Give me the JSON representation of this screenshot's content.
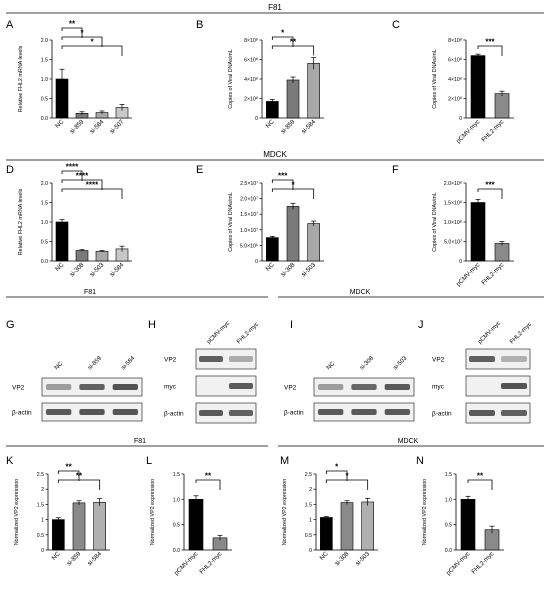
{
  "sections": {
    "top": "F81",
    "middle": "MDCK",
    "blot_left": "F81",
    "blot_right": "MDCK",
    "bottom_left": "F81",
    "bottom_right": "MDCK"
  },
  "panel_letters": {
    "A": "A",
    "B": "B",
    "C": "C",
    "D": "D",
    "E": "E",
    "F": "F",
    "G": "G",
    "H": "H",
    "I": "I",
    "J": "J",
    "K": "K",
    "L": "L",
    "M": "M",
    "N": "N"
  },
  "chart_data": [
    {
      "id": "A",
      "type": "bar",
      "categories": [
        "NC",
        "si-859",
        "si-584",
        "si-507"
      ],
      "values": [
        1.0,
        0.12,
        0.14,
        0.27
      ],
      "errors": [
        0.25,
        0.04,
        0.04,
        0.08
      ],
      "fills": [
        "#000000",
        "#7a7a7a",
        "#a8a8a8",
        "#c8c8c8"
      ],
      "ylabel": "Relative FHL2 mRNA levels",
      "ylim": [
        0,
        2.0
      ],
      "ticks": [
        {
          "v": 0,
          "t": "0.0"
        },
        {
          "v": 0.5,
          "t": "0.5"
        },
        {
          "v": 1.0,
          "t": "1.0"
        },
        {
          "v": 1.5,
          "t": "1.5"
        },
        {
          "v": 2.0,
          "t": "2.0"
        }
      ],
      "significance": [
        {
          "to": 1,
          "label": "**"
        },
        {
          "to": 2,
          "label": "*"
        },
        {
          "to": 3,
          "label": "*"
        }
      ]
    },
    {
      "id": "B",
      "type": "bar",
      "categories": [
        "NC",
        "si-859",
        "si-584"
      ],
      "values": [
        170000000,
        390000000,
        560000000
      ],
      "errors": [
        20000000,
        30000000,
        60000000
      ],
      "fills": [
        "#000000",
        "#7a7a7a",
        "#a8a8a8"
      ],
      "ylabel": "Copies of Viral DNAs/mL",
      "ylim": [
        0,
        800000000
      ],
      "ticks": [
        {
          "v": 0,
          "t": "0"
        },
        {
          "v": 200000000,
          "t": "2×10⁸"
        },
        {
          "v": 400000000,
          "t": "4×10⁸"
        },
        {
          "v": 600000000,
          "t": "6×10⁸"
        },
        {
          "v": 800000000,
          "t": "8×10⁸"
        }
      ],
      "significance": [
        {
          "to": 1,
          "label": "*"
        },
        {
          "to": 2,
          "label": "**"
        }
      ]
    },
    {
      "id": "C",
      "type": "bar",
      "categories": [
        "pCMV-myc",
        "FHL2-myc"
      ],
      "values": [
        640000000,
        250000000
      ],
      "errors": [
        15000000,
        25000000
      ],
      "fills": [
        "#000000",
        "#8a8a8a"
      ],
      "ylabel": "Copies of Viral DNAs/mL",
      "ylim": [
        0,
        800000000
      ],
      "ticks": [
        {
          "v": 0,
          "t": "0"
        },
        {
          "v": 200000000,
          "t": "2×10⁸"
        },
        {
          "v": 400000000,
          "t": "4×10⁸"
        },
        {
          "v": 600000000,
          "t": "6×10⁸"
        },
        {
          "v": 800000000,
          "t": "8×10⁸"
        }
      ],
      "significance": [
        {
          "to": 1,
          "label": "***"
        }
      ]
    },
    {
      "id": "D",
      "type": "bar",
      "categories": [
        "NC",
        "si-308",
        "si-503",
        "si-584"
      ],
      "values": [
        1.0,
        0.27,
        0.25,
        0.31
      ],
      "errors": [
        0.06,
        0.02,
        0.02,
        0.07
      ],
      "fills": [
        "#000000",
        "#7a7a7a",
        "#a8a8a8",
        "#c8c8c8"
      ],
      "ylabel": "Relative FHL2 mRNA levels",
      "ylim": [
        0,
        2.0
      ],
      "ticks": [
        {
          "v": 0,
          "t": "0.0"
        },
        {
          "v": 0.5,
          "t": "0.5"
        },
        {
          "v": 1.0,
          "t": "1.0"
        },
        {
          "v": 1.5,
          "t": "1.5"
        },
        {
          "v": 2.0,
          "t": "2.0"
        }
      ],
      "significance": [
        {
          "to": 1,
          "label": "****"
        },
        {
          "to": 2,
          "label": "****"
        },
        {
          "to": 3,
          "label": "****"
        }
      ]
    },
    {
      "id": "E",
      "type": "bar",
      "categories": [
        "NC",
        "si-308",
        "si-503"
      ],
      "values": [
        7500000,
        17500000,
        12000000
      ],
      "errors": [
        400000,
        1000000,
        800000
      ],
      "fills": [
        "#000000",
        "#7a7a7a",
        "#a8a8a8"
      ],
      "ylabel": "Copies of Viral DNAs/mL",
      "ylim": [
        0,
        25000000
      ],
      "ticks": [
        {
          "v": 0,
          "t": "0"
        },
        {
          "v": 5000000,
          "t": "5.0×10⁶"
        },
        {
          "v": 10000000,
          "t": "1.0×10⁷"
        },
        {
          "v": 15000000,
          "t": "1.5×10⁷"
        },
        {
          "v": 20000000,
          "t": "2.0×10⁷"
        },
        {
          "v": 25000000,
          "t": "2.5×10⁷"
        }
      ],
      "significance": [
        {
          "to": 1,
          "label": "***"
        },
        {
          "to": 2,
          "label": "*"
        }
      ]
    },
    {
      "id": "F",
      "type": "bar",
      "categories": [
        "pCMV-myc",
        "FHL2-myc"
      ],
      "values": [
        150000000,
        45000000
      ],
      "errors": [
        8000000,
        5000000
      ],
      "fills": [
        "#000000",
        "#8a8a8a"
      ],
      "ylabel": "Copies of Viral DNAs/mL",
      "ylim": [
        0,
        200000000
      ],
      "ticks": [
        {
          "v": 0,
          "t": "0"
        },
        {
          "v": 50000000,
          "t": "5.0×10⁷"
        },
        {
          "v": 100000000,
          "t": "1.0×10⁸"
        },
        {
          "v": 150000000,
          "t": "1.5×10⁸"
        },
        {
          "v": 200000000,
          "t": "2.0×10⁸"
        }
      ],
      "significance": [
        {
          "to": 1,
          "label": "***"
        }
      ]
    },
    {
      "id": "K",
      "type": "bar",
      "categories": [
        "NC",
        "si-859",
        "si-584"
      ],
      "values": [
        1.0,
        1.55,
        1.57
      ],
      "errors": [
        0.06,
        0.07,
        0.12
      ],
      "fills": [
        "#000000",
        "#8a8a8a",
        "#b0b0b0"
      ],
      "ylabel": "Normalized VP2 expression",
      "ylim": [
        0,
        2.5
      ],
      "ticks": [
        {
          "v": 0,
          "t": "0"
        },
        {
          "v": 0.5,
          "t": "0.5"
        },
        {
          "v": 1.0,
          "t": "1"
        },
        {
          "v": 1.5,
          "t": "1.5"
        },
        {
          "v": 2.0,
          "t": "2"
        },
        {
          "v": 2.5,
          "t": "2.5"
        }
      ],
      "significance": [
        {
          "to": 1,
          "label": "**"
        },
        {
          "to": 2,
          "label": "**"
        }
      ]
    },
    {
      "id": "L",
      "type": "bar",
      "categories": [
        "pCMV-myc",
        "FHL2-myc"
      ],
      "values": [
        1.0,
        0.24
      ],
      "errors": [
        0.07,
        0.05
      ],
      "fills": [
        "#000000",
        "#8a8a8a"
      ],
      "ylabel": "Normalized VP2 expression",
      "ylim": [
        0,
        1.5
      ],
      "ticks": [
        {
          "v": 0,
          "t": "0.0"
        },
        {
          "v": 0.5,
          "t": "0.5"
        },
        {
          "v": 1.0,
          "t": "1.0"
        },
        {
          "v": 1.5,
          "t": "1.5"
        }
      ],
      "significance": [
        {
          "to": 1,
          "label": "**"
        }
      ]
    },
    {
      "id": "M",
      "type": "bar",
      "categories": [
        "NC",
        "si-308",
        "si-503"
      ],
      "values": [
        1.07,
        1.56,
        1.58
      ],
      "errors": [
        0.03,
        0.06,
        0.12
      ],
      "fills": [
        "#000000",
        "#8a8a8a",
        "#b0b0b0"
      ],
      "ylabel": "Normalized VP2 expression",
      "ylim": [
        0,
        2.5
      ],
      "ticks": [
        {
          "v": 0,
          "t": "0"
        },
        {
          "v": 0.5,
          "t": "0.5"
        },
        {
          "v": 1.0,
          "t": "1"
        },
        {
          "v": 1.5,
          "t": "1.5"
        },
        {
          "v": 2.0,
          "t": "2"
        },
        {
          "v": 2.5,
          "t": "2.5"
        }
      ],
      "significance": [
        {
          "to": 1,
          "label": "*"
        },
        {
          "to": 2,
          "label": "*"
        }
      ]
    },
    {
      "id": "N",
      "type": "bar",
      "categories": [
        "pCMV-myc",
        "FHL2-myc"
      ],
      "values": [
        1.0,
        0.4
      ],
      "errors": [
        0.06,
        0.07
      ],
      "fills": [
        "#000000",
        "#8a8a8a"
      ],
      "ylabel": "Normalized VP2 expression",
      "ylim": [
        0,
        1.5
      ],
      "ticks": [
        {
          "v": 0,
          "t": "0.0"
        },
        {
          "v": 0.5,
          "t": "0.5"
        },
        {
          "v": 1.0,
          "t": "1.0"
        },
        {
          "v": 1.5,
          "t": "1.5"
        }
      ],
      "significance": [
        {
          "to": 1,
          "label": "**"
        }
      ]
    }
  ],
  "blots": {
    "G": {
      "lanes": [
        "NC",
        "si-859",
        "si-584"
      ],
      "rows": [
        {
          "label": "VP2",
          "levels": [
            0.35,
            0.8,
            0.9
          ]
        },
        {
          "label": "β-actin",
          "levels": [
            0.85,
            0.88,
            0.88
          ]
        }
      ]
    },
    "H": {
      "lanes": [
        "pCMV-myc",
        "FHL2-myc"
      ],
      "rows": [
        {
          "label": "VP2",
          "levels": [
            0.8,
            0.25
          ]
        },
        {
          "label": "myc",
          "levels": [
            0.0,
            0.85
          ]
        },
        {
          "label": "β-actin",
          "levels": [
            0.85,
            0.8
          ]
        }
      ]
    },
    "I": {
      "lanes": [
        "NC",
        "si-308",
        "si-503"
      ],
      "rows": [
        {
          "label": "VP2",
          "levels": [
            0.35,
            0.75,
            0.85
          ]
        },
        {
          "label": "β-actin",
          "levels": [
            0.85,
            0.85,
            0.85
          ]
        }
      ]
    },
    "J": {
      "lanes": [
        "pCMV-myc",
        "FHL2-myc"
      ],
      "rows": [
        {
          "label": "VP2",
          "levels": [
            0.8,
            0.2
          ]
        },
        {
          "label": "myc",
          "levels": [
            0.0,
            0.9
          ]
        },
        {
          "label": "β-actin",
          "levels": [
            0.85,
            0.8
          ]
        }
      ]
    }
  }
}
